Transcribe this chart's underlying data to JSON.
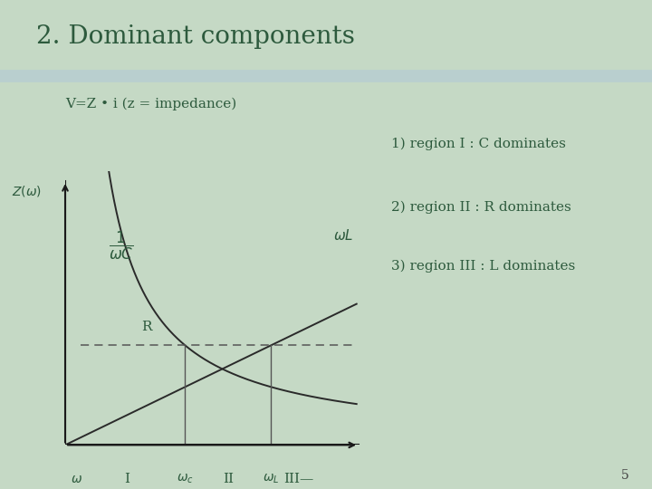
{
  "title": "2. Dominant components",
  "title_fontsize": 20,
  "title_color": "#2d5a3d",
  "bg_color": "#c5d9c5",
  "subtitle": "V=Z • i (z = impedance)",
  "subtitle_fontsize": 11,
  "curve_color": "#2a2a2a",
  "dashed_color": "#555555",
  "axis_color": "#1a1a1a",
  "sep_line_color": "#555555",
  "region_fontsize": 11,
  "omega_c": 2.8,
  "omega_L": 4.8,
  "R_level": 2.0,
  "x_max": 7.0,
  "y_max": 5.5,
  "region_texts": [
    "1) region I : C dominates",
    "2) region II : R dominates",
    "3) region III : L dominates"
  ],
  "page_num": "5"
}
